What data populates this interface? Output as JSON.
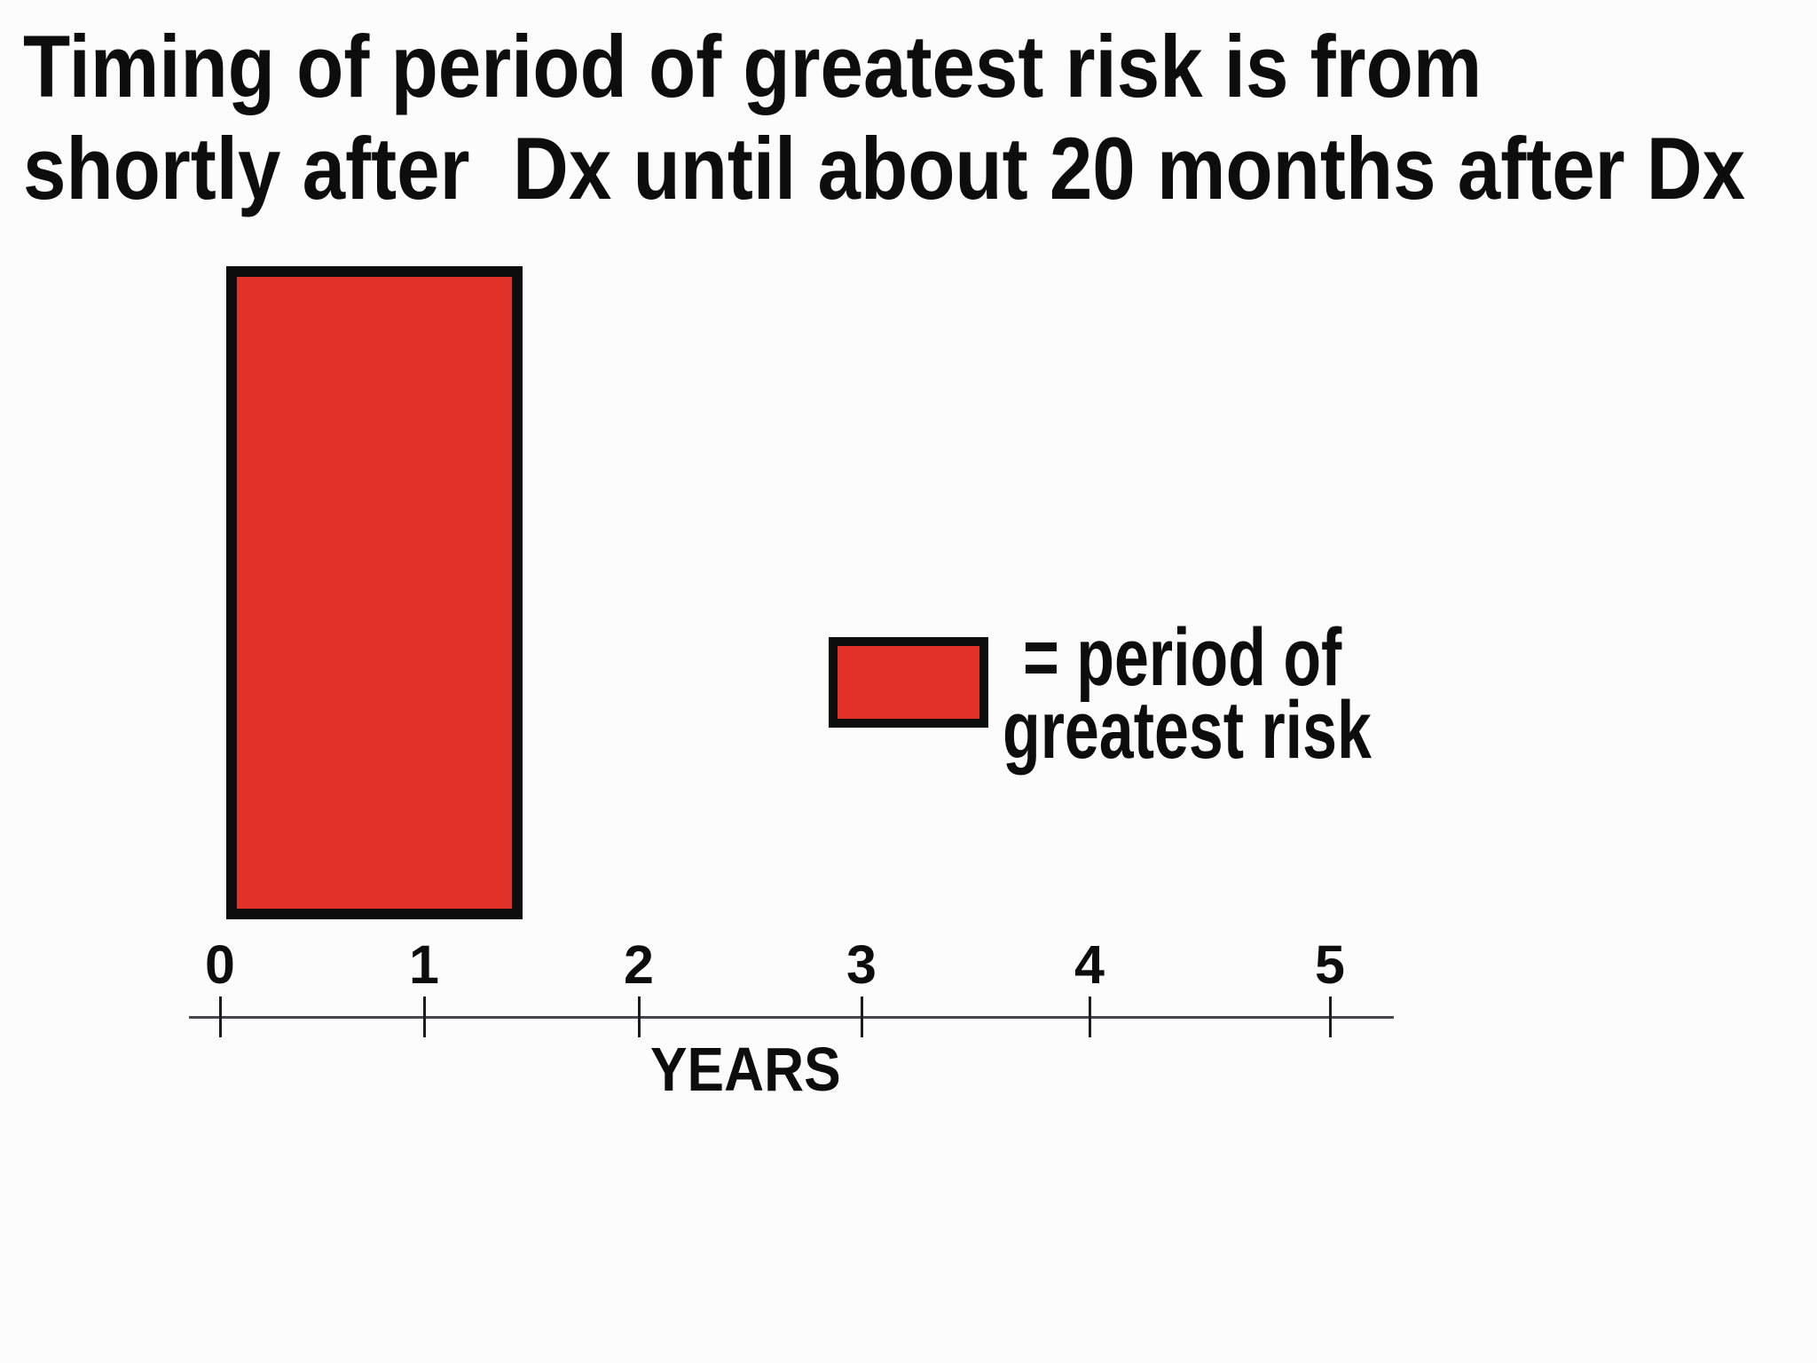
{
  "title": {
    "line1": "Timing of period of greatest risk is from",
    "line2": "shortly after  Dx until about 20 months after Dx"
  },
  "legend": {
    "line1": "= period of",
    "line2": "greatest risk",
    "swatch_color": "#e23128"
  },
  "chart_data": {
    "type": "bar",
    "title": "Timing of period of greatest risk is from shortly after Dx until about 20 months after Dx",
    "xlabel": "YEARS",
    "x_ticks": [
      "0",
      "1",
      "2",
      "3",
      "4",
      "5"
    ],
    "xlim": [
      0,
      5.4
    ],
    "grid": false,
    "bars": [
      {
        "name": "period of greatest risk",
        "start_x_years": 0,
        "end_x_years": 1.4,
        "fill": "#e23128",
        "border": "#0d0d0d"
      }
    ],
    "legend_entries": [
      {
        "swatch_fill": "#e23128",
        "label": "= period of greatest risk"
      }
    ],
    "legend_position": "center-right"
  },
  "colors": {
    "background": "#fcfcfc",
    "text": "#0d0d0d",
    "axis_line": "#47474d",
    "bar_fill": "#e23128",
    "bar_border": "#0d0d0d"
  }
}
